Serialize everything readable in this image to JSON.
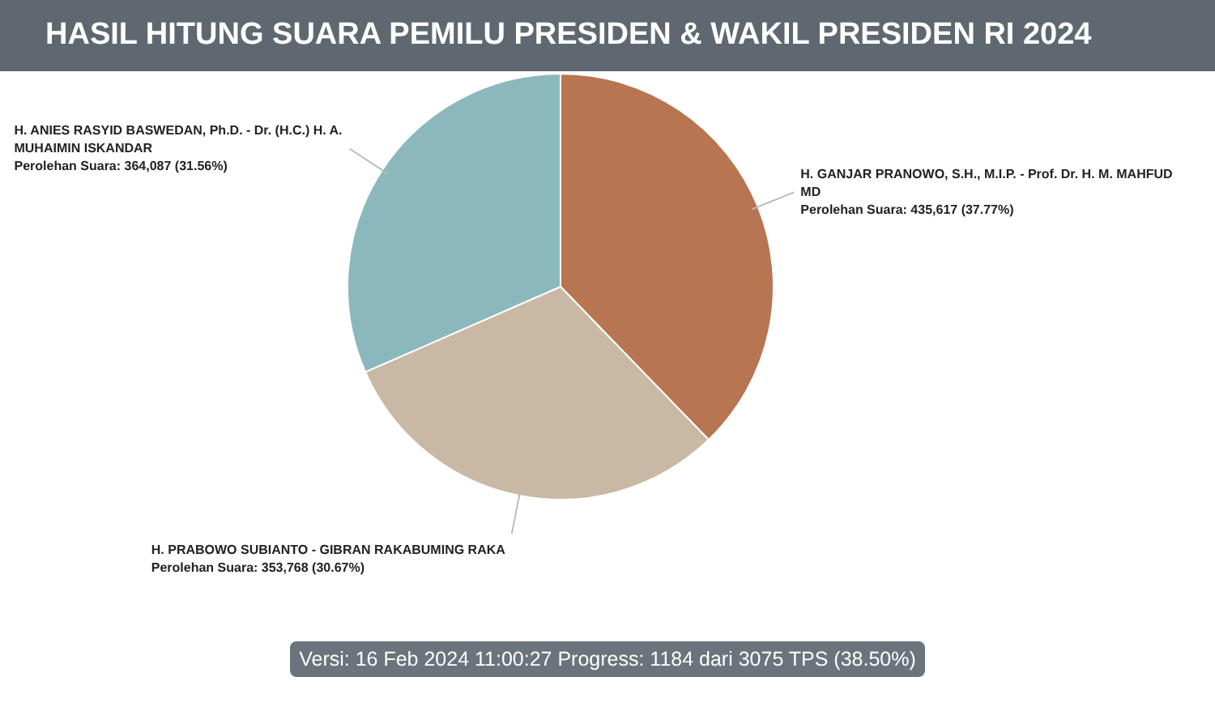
{
  "chart_data": {
    "type": "pie",
    "title": "HASIL HITUNG SUARA PEMILU PRESIDEN & WAKIL PRESIDEN RI 2024",
    "categories": [
      "H. GANJAR PRANOWO, S.H., M.I.P. - Prof. Dr. H. M. MAHFUD MD",
      "H. PRABOWO SUBIANTO - GIBRAN RAKABUMING RAKA",
      "H. ANIES RASYID BASWEDAN, Ph.D. - Dr. (H.C.) H. A. MUHAIMIN ISKANDAR"
    ],
    "values": [
      435617,
      353768,
      364087
    ],
    "colors": [
      "#b87551",
      "#c9b8a3",
      "#8ab8bd"
    ],
    "value_labels": [
      "Perolehan Suara: 435,617 (37.77%)",
      "Perolehan Suara: 353,768 (30.67%)",
      "Perolehan Suara: 364,087 (31.56%)"
    ],
    "annotations": [
      "Versi: 16 Feb 2024 11:00:27 Progress: 1184 dari 3075 TPS (38.50%)"
    ]
  }
}
